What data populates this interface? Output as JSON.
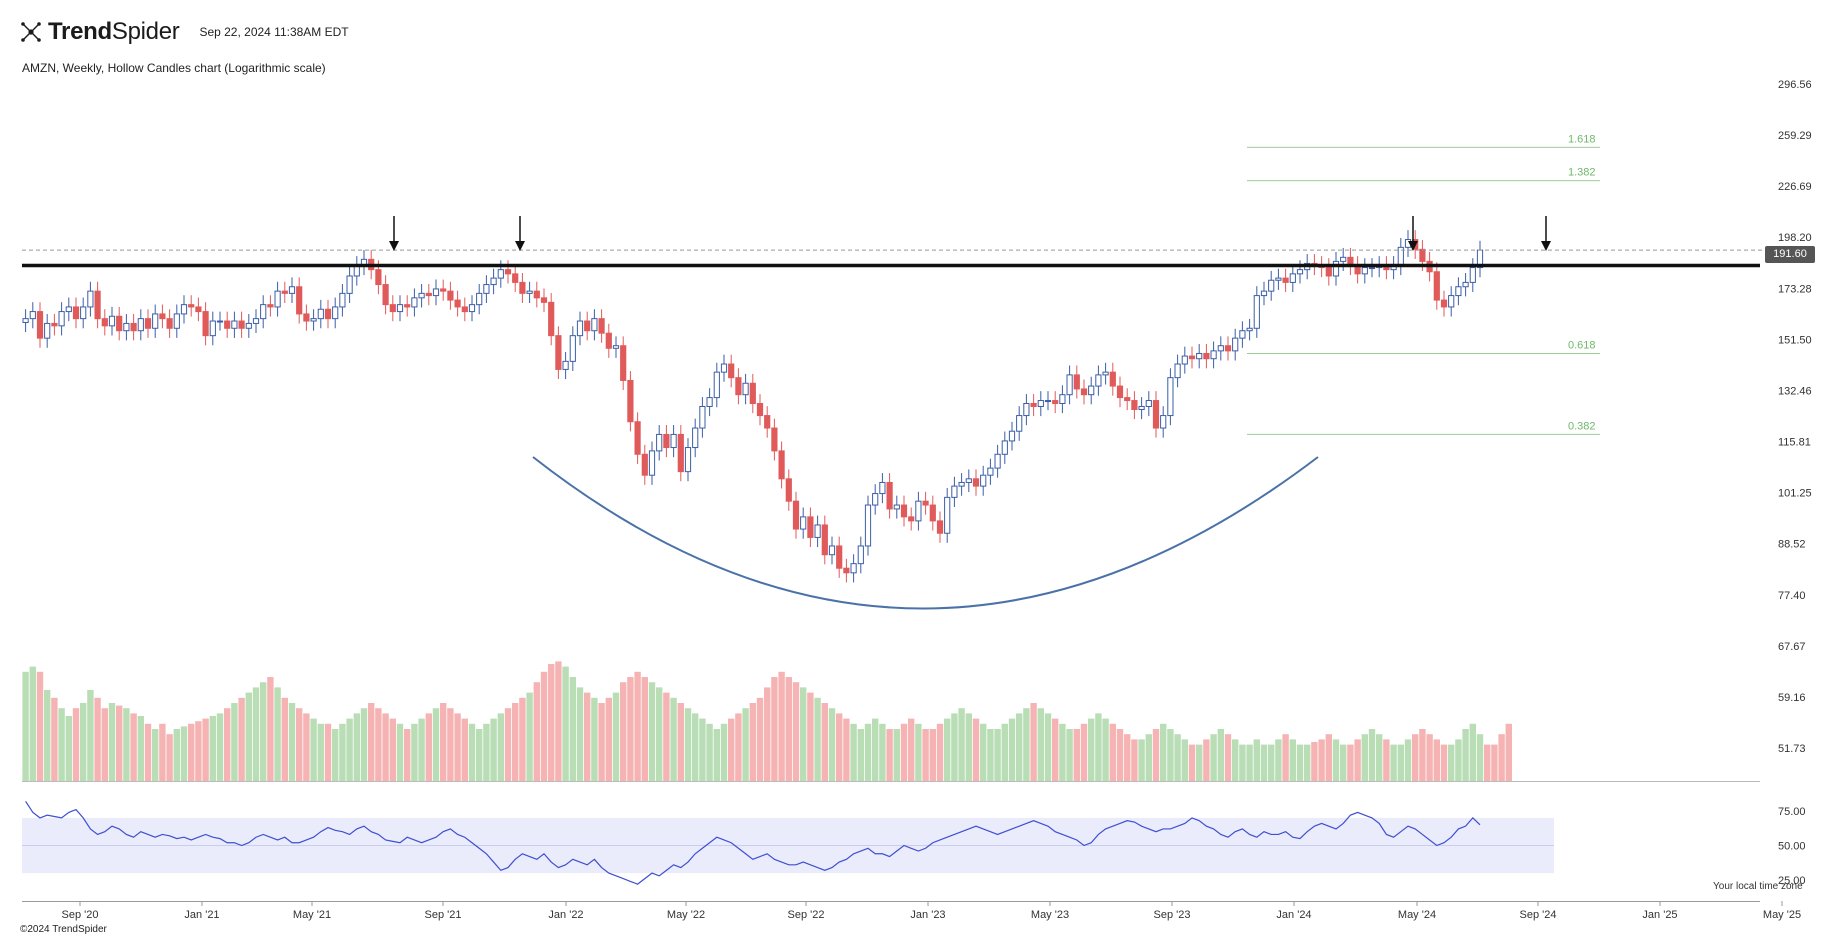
{
  "header": {
    "brand_name_bold": "Trend",
    "brand_name_light": "Spider",
    "timestamp": "Sep 22, 2024 11:38AM EDT",
    "subtitle": "AMZN, Weekly, Hollow Candles chart (Logarithmic scale)",
    "copyright": "©2024 TrendSpider",
    "local_time_note": "Your local time zone"
  },
  "colors": {
    "up": "#3b5ea8",
    "down": "#e05a5a",
    "vol_up": "#b9ddb5",
    "vol_down": "#f6b3b3",
    "fib": "#9ccf96",
    "fib_text": "#6fb86a",
    "resistance": "#111111",
    "cup": "#4a72a8",
    "rsi_line": "#3f4fd0",
    "rsi_band": "#eaecfb"
  },
  "chart_data": {
    "type": "candlestick",
    "symbol": "AMZN",
    "interval": "Weekly",
    "scale": "log",
    "y_ticks": [
      296.56,
      259.29,
      226.69,
      198.2,
      173.28,
      151.5,
      132.46,
      115.81,
      101.25,
      88.52,
      77.4,
      67.67,
      59.16,
      51.73
    ],
    "y_ticks_text": [
      "296.56",
      "259.29",
      "226.69",
      "198.20",
      "173.28",
      "151.50",
      "132.46",
      "115.81",
      "101.25",
      "88.52",
      "77.40",
      "67.67",
      "59.16",
      "51.73"
    ],
    "x_ticks": [
      "Sep '20",
      "Jan '21",
      "May '21",
      "Sep '21",
      "Jan '22",
      "May '22",
      "Sep '22",
      "Jan '23",
      "May '23",
      "Sep '23",
      "Jan '24",
      "May '24",
      "Sep '24",
      "Jan '25",
      "May '25"
    ],
    "last_price": 191.6,
    "last_price_text": "191.60",
    "resistance_level": 184,
    "fib_levels": [
      {
        "label": "1.618",
        "price": 251
      },
      {
        "label": "1.382",
        "price": 230
      },
      {
        "label": "0.618",
        "price": 146
      },
      {
        "label": "0.382",
        "price": 118
      }
    ],
    "arrow_marks": [
      "Jul '21",
      "Nov '21",
      "Apr '24",
      "Sep '24"
    ],
    "close_series": {
      "start": "Aug '20",
      "step": "1 week",
      "values": [
        160,
        163,
        152,
        158,
        157,
        163,
        165,
        160,
        165,
        172,
        160,
        157,
        161,
        155,
        158,
        155,
        160,
        156,
        162,
        160,
        156,
        162,
        166,
        165,
        163,
        153,
        159,
        159,
        156,
        159,
        156,
        158,
        160,
        166,
        165,
        172,
        171,
        174,
        162,
        159,
        160,
        164,
        160,
        165,
        171,
        179,
        184,
        187,
        182,
        175,
        166,
        163,
        166,
        165,
        169,
        171,
        170,
        173,
        172,
        168,
        165,
        163,
        166,
        171,
        175,
        178,
        182,
        180,
        176,
        171,
        172,
        169,
        167,
        153,
        140,
        143,
        153,
        159,
        155,
        160,
        154,
        148,
        149,
        136,
        122,
        112,
        106,
        113,
        118,
        114,
        118,
        107,
        114,
        120,
        127,
        130,
        139,
        142,
        137,
        131,
        135,
        128,
        124,
        120,
        113,
        105,
        99,
        92,
        95,
        90,
        93,
        86,
        88,
        83,
        82,
        84,
        88,
        98,
        101,
        104,
        97,
        98,
        95,
        94,
        99,
        98,
        94,
        91,
        100,
        103,
        104,
        105,
        103,
        106,
        108,
        112,
        116,
        119,
        124,
        128,
        127,
        129,
        129,
        128,
        131,
        138,
        133,
        131,
        134,
        138,
        139,
        134,
        130,
        129,
        126,
        127,
        129,
        120,
        124,
        137,
        142,
        145,
        144,
        146,
        144,
        147,
        149,
        147,
        152,
        155,
        156,
        170,
        172,
        177,
        178,
        176,
        180,
        182,
        185,
        184,
        183,
        179,
        186,
        188,
        184,
        180,
        183,
        183,
        184,
        182,
        184,
        193,
        197,
        192,
        186,
        181,
        168,
        165,
        170,
        174,
        176,
        183,
        191.6
      ]
    },
    "volume_series": {
      "unit": "relative",
      "values": [
        42,
        44,
        42,
        35,
        32,
        28,
        25,
        28,
        30,
        35,
        32,
        28,
        30,
        29,
        28,
        26,
        25,
        22,
        20,
        22,
        18,
        20,
        21,
        22,
        23,
        24,
        25,
        26,
        28,
        30,
        32,
        34,
        36,
        38,
        40,
        36,
        32,
        30,
        28,
        26,
        24,
        22,
        22,
        20,
        22,
        24,
        26,
        28,
        30,
        28,
        26,
        24,
        22,
        20,
        22,
        24,
        26,
        28,
        30,
        28,
        26,
        24,
        22,
        20,
        22,
        24,
        26,
        28,
        30,
        32,
        34,
        38,
        42,
        45,
        46,
        44,
        40,
        36,
        34,
        32,
        30,
        32,
        34,
        38,
        40,
        42,
        40,
        38,
        36,
        34,
        32,
        30,
        28,
        26,
        24,
        22,
        20,
        22,
        24,
        26,
        28,
        30,
        32,
        36,
        40,
        42,
        40,
        38,
        36,
        34,
        32,
        30,
        28,
        26,
        24,
        22,
        20,
        22,
        24,
        22,
        20,
        20,
        22,
        24,
        22,
        20,
        20,
        22,
        24,
        26,
        28,
        26,
        24,
        22,
        20,
        20,
        22,
        24,
        26,
        28,
        30,
        28,
        26,
        24,
        22,
        20,
        20,
        22,
        24,
        26,
        24,
        22,
        20,
        18,
        16,
        16,
        18,
        20,
        22,
        20,
        18,
        16,
        14,
        14,
        16,
        18,
        20,
        18,
        16,
        14,
        14,
        16,
        14,
        14,
        16,
        18,
        16,
        14,
        14,
        15,
        16,
        18,
        16,
        14,
        14,
        16,
        18,
        20,
        18,
        16,
        14,
        14,
        16,
        18,
        20,
        18,
        16,
        14,
        14,
        16,
        20,
        22,
        18,
        14,
        14,
        18,
        22
      ]
    },
    "rsi": {
      "ticks": [
        75,
        50,
        25
      ],
      "ticks_text": [
        "75.00",
        "50.00",
        "25.00"
      ],
      "band": [
        30,
        70
      ],
      "values": [
        82,
        74,
        70,
        72,
        71,
        70,
        74,
        76,
        70,
        62,
        58,
        60,
        64,
        62,
        58,
        56,
        60,
        58,
        56,
        58,
        57,
        55,
        56,
        54,
        56,
        58,
        56,
        55,
        52,
        52,
        50,
        52,
        56,
        58,
        56,
        54,
        56,
        52,
        52,
        54,
        56,
        60,
        63,
        61,
        60,
        58,
        62,
        64,
        60,
        58,
        54,
        53,
        52,
        56,
        54,
        52,
        54,
        56,
        60,
        62,
        58,
        56,
        52,
        48,
        44,
        38,
        32,
        34,
        40,
        44,
        42,
        40,
        44,
        38,
        34,
        36,
        40,
        38,
        36,
        40,
        34,
        30,
        28,
        26,
        24,
        22,
        26,
        30,
        28,
        32,
        36,
        34,
        38,
        44,
        48,
        52,
        56,
        54,
        52,
        48,
        44,
        40,
        42,
        44,
        40,
        38,
        36,
        36,
        38,
        36,
        34,
        32,
        34,
        38,
        40,
        44,
        46,
        48,
        44,
        44,
        42,
        46,
        50,
        48,
        46,
        48,
        52,
        54,
        56,
        58,
        60,
        62,
        64,
        62,
        60,
        58,
        60,
        62,
        64,
        66,
        68,
        66,
        64,
        60,
        58,
        56,
        54,
        50,
        52,
        58,
        62,
        64,
        66,
        68,
        67,
        64,
        62,
        60,
        62,
        62,
        64,
        66,
        70,
        68,
        64,
        62,
        58,
        56,
        60,
        62,
        58,
        56,
        60,
        58,
        58,
        60,
        56,
        55,
        60,
        64,
        66,
        64,
        62,
        66,
        72,
        74,
        72,
        70,
        66,
        58,
        56,
        60,
        64,
        62,
        58,
        54,
        50,
        52,
        56,
        62,
        64,
        70,
        65
      ]
    }
  }
}
